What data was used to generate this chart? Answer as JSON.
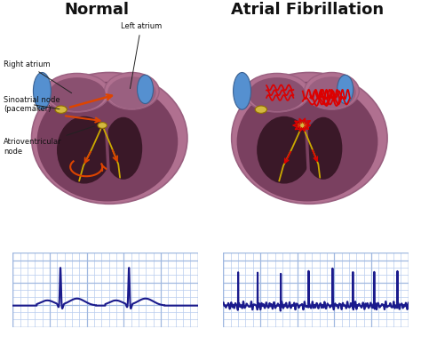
{
  "title_normal": "Normal",
  "title_af": "Atrial Fibrillation",
  "label_left_atrium": "Left atrium",
  "label_right_atrium": "Right atrium",
  "label_sa_node": "Sinoatrial node\n(pacemaker)",
  "label_av_node": "Atrioventricular\nnode",
  "heart_outer": "#b07090",
  "heart_mid": "#7a4060",
  "heart_dark": "#4a2038",
  "heart_chamber": "#3a1828",
  "atrium_color": "#8a5070",
  "atrium_left_color": "#9a6080",
  "vessel_blue": "#5590d0",
  "vessel_blue_dark": "#3a6090",
  "node_sa_color": "#d4b840",
  "node_av_color": "#d4b840",
  "arrow_normal_color": "#dd4400",
  "arrow_af_color": "#dd0000",
  "conduction_color": "#ccaa00",
  "ecg_color": "#1a1a8c",
  "grid_color": "#b8ccee",
  "grid_major_color": "#a0b8e0",
  "grid_bg": "#eef2fc",
  "background": "#ffffff",
  "title_fontsize": 13,
  "label_fontsize": 6.0
}
